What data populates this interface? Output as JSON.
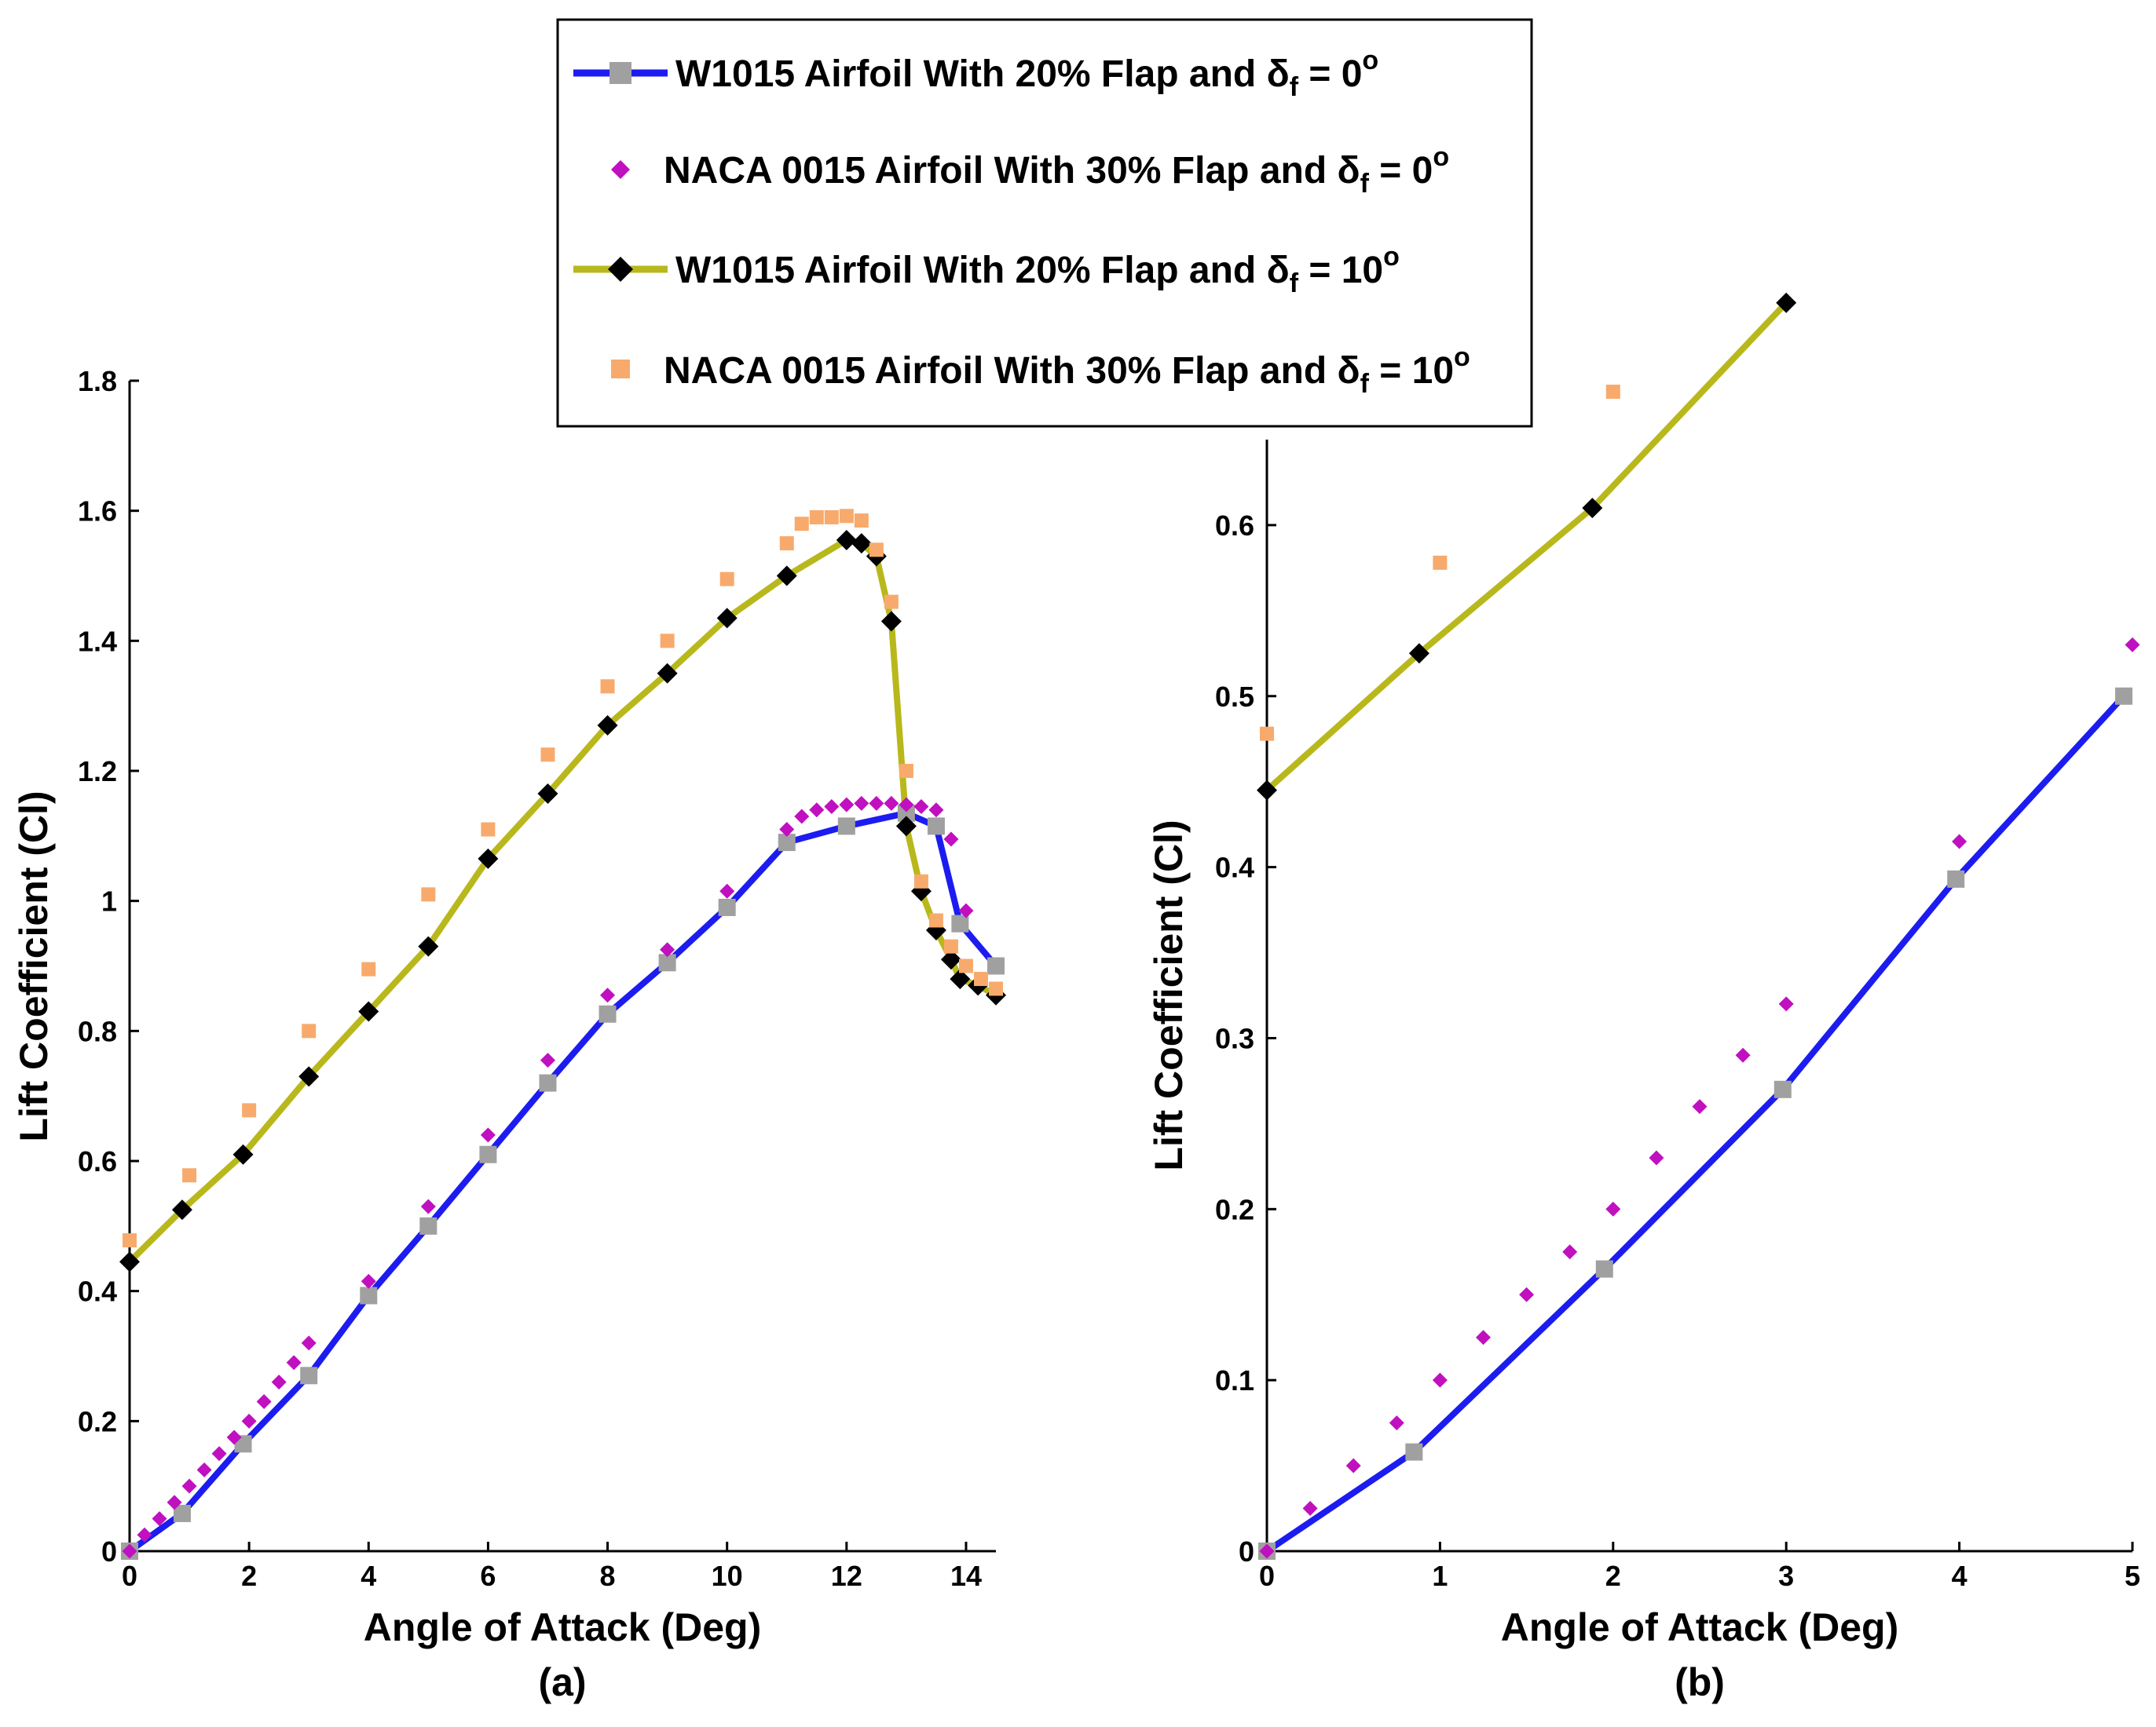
{
  "legend": {
    "entries": [
      {
        "text_main": "W1015 Airfoil With 20% Flap and ",
        "symbol": "δ",
        "subscript": "f",
        "eq": " = 0",
        "degree": "o",
        "series_ref": "w1015_0"
      },
      {
        "text_main": "NACA 0015 Airfoil With 30% Flap and ",
        "symbol": "δ",
        "subscript": "f",
        "eq": " = 0",
        "degree": "o",
        "series_ref": "naca_0"
      },
      {
        "text_main": "W1015 Airfoil With 20% Flap and ",
        "symbol": "δ",
        "subscript": "f",
        "eq": " = 10",
        "degree": "o",
        "series_ref": "w1015_10"
      },
      {
        "text_main": "NACA 0015 Airfoil With 30% Flap and ",
        "symbol": "δ",
        "subscript": "f",
        "eq": " = 10",
        "degree": "o",
        "series_ref": "naca_10"
      }
    ]
  },
  "colors": {
    "w1015_0_line": "#1c1cf0",
    "w1015_0_marker": "#a0a0a0",
    "naca_0_marker": "#c010c0",
    "w1015_10_line": "#b8b81c",
    "w1015_10_marker": "#000000",
    "naca_10_marker": "#f8aa6c"
  },
  "chart_data": [
    {
      "id": "a",
      "type": "line",
      "caption": "(a)",
      "xlabel": "Angle of Attack (Deg)",
      "ylabel": "Lift Coefficient (Cl)",
      "xlim": [
        0,
        14.5
      ],
      "ylim": [
        0,
        1.8
      ],
      "xticks": [
        0,
        2,
        4,
        6,
        8,
        10,
        12,
        14
      ],
      "yticks": [
        0,
        0.2,
        0.4,
        0.6,
        0.8,
        1,
        1.2,
        1.4,
        1.6,
        1.8
      ],
      "ytick_labels": [
        "0",
        "0.2",
        "0.4",
        "0.6",
        "0.8",
        "1",
        "1.2",
        "1.4",
        "1.6",
        "1.8"
      ],
      "series": [
        {
          "key": "w1015_0",
          "name": "W1015 Airfoil With 20% Flap and δf = 0°",
          "style": "line-marker",
          "marker": "square",
          "x": [
            0,
            0.88,
            1.9,
            3,
            4,
            5,
            6,
            7,
            8,
            9,
            10,
            11,
            12,
            13,
            13.5,
            13.9,
            14.5
          ],
          "y": [
            0,
            0.058,
            0.165,
            0.27,
            0.393,
            0.5,
            0.61,
            0.72,
            0.826,
            0.905,
            0.99,
            1.09,
            1.115,
            1.135,
            1.115,
            0.965,
            0.9
          ]
        },
        {
          "key": "naca_0",
          "name": "NACA 0015 Airfoil With 30% Flap and δf = 0°",
          "style": "marker",
          "marker": "diamond",
          "x": [
            0,
            0.25,
            0.5,
            0.75,
            1,
            1.25,
            1.5,
            1.75,
            2,
            2.25,
            2.5,
            2.75,
            3,
            4,
            5,
            6,
            7,
            8,
            9,
            10,
            11,
            11.25,
            11.5,
            11.75,
            12,
            12.25,
            12.5,
            12.75,
            13,
            13.25,
            13.5,
            13.75,
            14
          ],
          "y": [
            0,
            0.025,
            0.05,
            0.075,
            0.1,
            0.125,
            0.15,
            0.175,
            0.2,
            0.23,
            0.26,
            0.29,
            0.32,
            0.415,
            0.53,
            0.64,
            0.755,
            0.855,
            0.925,
            1.015,
            1.11,
            1.13,
            1.14,
            1.145,
            1.148,
            1.15,
            1.15,
            1.15,
            1.148,
            1.145,
            1.14,
            1.095,
            0.985
          ]
        },
        {
          "key": "w1015_10",
          "name": "W1015 Airfoil With 20% Flap and δf = 10°",
          "style": "line-marker",
          "marker": "diamond",
          "x": [
            0,
            0.88,
            1.9,
            3,
            4,
            5,
            6,
            7,
            8,
            9,
            10,
            11,
            12,
            12.25,
            12.5,
            12.75,
            13,
            13.25,
            13.5,
            13.75,
            13.9,
            14.2,
            14.5
          ],
          "y": [
            0.445,
            0.525,
            0.61,
            0.73,
            0.83,
            0.93,
            1.065,
            1.165,
            1.27,
            1.35,
            1.435,
            1.5,
            1.555,
            1.55,
            1.53,
            1.43,
            1.115,
            1.015,
            0.955,
            0.91,
            0.88,
            0.87,
            0.855
          ]
        },
        {
          "key": "naca_10",
          "name": "NACA 0015 Airfoil With 30% Flap and δf = 10°",
          "style": "marker",
          "marker": "square",
          "x": [
            0,
            1,
            2,
            3,
            4,
            5,
            6,
            7,
            8,
            9,
            10,
            11,
            11.25,
            11.5,
            11.75,
            12,
            12.25,
            12.5,
            12.75,
            13,
            13.25,
            13.5,
            13.75,
            14,
            14.25,
            14.5
          ],
          "y": [
            0.478,
            0.578,
            0.678,
            0.8,
            0.895,
            1.01,
            1.11,
            1.225,
            1.33,
            1.4,
            1.495,
            1.55,
            1.58,
            1.59,
            1.59,
            1.592,
            1.585,
            1.54,
            1.46,
            1.2,
            1.03,
            0.97,
            0.93,
            0.9,
            0.88,
            0.865
          ]
        }
      ]
    },
    {
      "id": "b",
      "type": "line",
      "caption": "(b)",
      "xlabel": "Angle of Attack (Deg)",
      "ylabel": "Lift Coefficient (Cl)",
      "xlim": [
        0,
        5
      ],
      "ylim": [
        0,
        0.65
      ],
      "xticks": [
        0,
        1,
        2,
        3,
        4,
        5
      ],
      "yticks": [
        0,
        0.1,
        0.2,
        0.3,
        0.4,
        0.5,
        0.6
      ],
      "ytick_labels": [
        "0",
        "0.1",
        "0.2",
        "0.3",
        "0.4",
        "0.5",
        "0.6"
      ],
      "series": [
        {
          "key": "w1015_0",
          "name": "W1015 Airfoil With 20% Flap and δf = 0°",
          "style": "line-marker",
          "marker": "square",
          "x": [
            0,
            0.85,
            1.95,
            2.98,
            3.98,
            4.95
          ],
          "y": [
            0,
            0.058,
            0.165,
            0.27,
            0.393,
            0.5
          ]
        },
        {
          "key": "naca_0",
          "name": "NACA 0015 Airfoil With 30% Flap and δf = 0°",
          "style": "marker",
          "marker": "diamond",
          "x": [
            0,
            0.25,
            0.5,
            0.75,
            1,
            1.25,
            1.5,
            1.75,
            2,
            2.25,
            2.5,
            2.75,
            3,
            4,
            5
          ],
          "y": [
            0,
            0.025,
            0.05,
            0.075,
            0.1,
            0.125,
            0.15,
            0.175,
            0.2,
            0.23,
            0.26,
            0.29,
            0.32,
            0.415,
            0.53
          ]
        },
        {
          "key": "w1015_10",
          "name": "W1015 Airfoil With 20% Flap and δf = 10°",
          "style": "line-marker",
          "marker": "diamond",
          "x": [
            0,
            0.88,
            1.88,
            3
          ],
          "y": [
            0.445,
            0.525,
            0.61,
            0.73
          ]
        },
        {
          "key": "naca_10",
          "name": "NACA 0015 Airfoil With 30% Flap and δf = 10°",
          "style": "marker",
          "marker": "square",
          "x": [
            0,
            1,
            2
          ],
          "y": [
            0.478,
            0.578,
            0.678
          ]
        }
      ]
    }
  ]
}
